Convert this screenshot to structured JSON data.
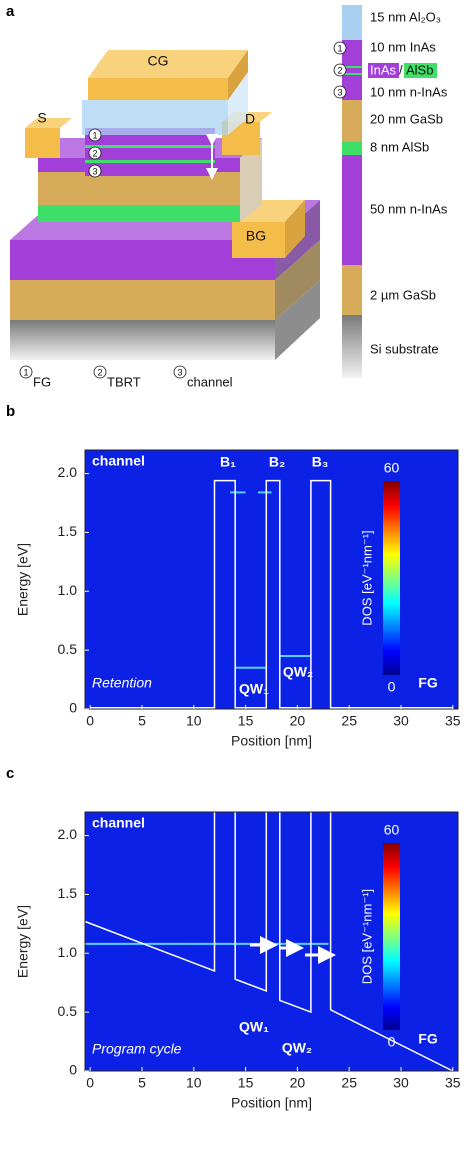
{
  "panel_a": {
    "label": "a",
    "device_labels": [
      "CG",
      "S",
      "D",
      "BG"
    ],
    "stack_markers": [
      "1",
      "2",
      "3"
    ],
    "layers": [
      "15 nm Al₂O₃",
      "10 nm InAs",
      "10 nm n-InAs",
      "20 nm GaSb",
      "8 nm AlSb",
      "50 nm n-InAs",
      "2 µm GaSb",
      "Si substrate"
    ],
    "barrier_label": {
      "well": "InAs",
      "separator": "/",
      "barrier": "AlSb"
    },
    "legend": [
      {
        "marker": "1",
        "text": "FG"
      },
      {
        "marker": "2",
        "text": "TBRT"
      },
      {
        "marker": "3",
        "text": "channel"
      }
    ]
  },
  "chart_data": [
    {
      "type": "line",
      "label": "b",
      "xlabel": "Position [nm]",
      "ylabel": "Energy [eV]",
      "xlim": [
        -0.5,
        35.5
      ],
      "ylim": [
        0,
        2.2
      ],
      "xticks": [
        0,
        5,
        10,
        15,
        20,
        25,
        30,
        35
      ],
      "yticks": [
        0,
        0.5,
        {
          "value": 1,
          "label": "1.0"
        },
        1.5,
        {
          "value": 2,
          "label": "2.0"
        }
      ],
      "band_edge": {
        "color": "#ffffff",
        "x": [
          0,
          12,
          12,
          14,
          14,
          17,
          17,
          18.3,
          18.3,
          21.3,
          21.3,
          23.2,
          23.2,
          35
        ],
        "y": [
          0.01,
          0.01,
          1.94,
          1.94,
          0.01,
          0.01,
          1.94,
          1.94,
          0.01,
          0.01,
          1.94,
          1.94,
          0.01,
          0.01
        ]
      },
      "levels": [
        {
          "x": [
            14,
            17
          ],
          "y": [
            0.35,
            0.35
          ]
        },
        {
          "x": [
            18.3,
            21.3
          ],
          "y": [
            0.45,
            0.45
          ]
        },
        {
          "x": [
            13.5,
            15
          ],
          "y": [
            1.84,
            1.84
          ]
        },
        {
          "x": [
            16.2,
            17.5
          ],
          "y": [
            1.84,
            1.84
          ]
        }
      ],
      "annotations": [
        "channel",
        "B₁",
        "B₂",
        "B₃",
        "QW₁",
        "QW₂",
        "Retention",
        "FG"
      ],
      "colorbar": {
        "label": "DOS [eV⁻¹nm⁻¹]",
        "lim": [
          0,
          60
        ],
        "ticks": [
          0,
          60
        ]
      }
    },
    {
      "type": "line",
      "label": "c",
      "xlabel": "Position [nm]",
      "ylabel": "Energy [eV]",
      "xlim": [
        -0.5,
        35.5
      ],
      "ylim": [
        0,
        2.2
      ],
      "xticks": [
        0,
        5,
        10,
        15,
        20,
        25,
        30,
        35
      ],
      "yticks": [
        0,
        0.5,
        {
          "value": 1,
          "label": "1.0"
        },
        1.5,
        {
          "value": 2,
          "label": "2.0"
        }
      ],
      "band_edge": {
        "color": "#ffffff",
        "x": [
          -0.5,
          12,
          12,
          null,
          14,
          14,
          17,
          17,
          null,
          18.3,
          18.3,
          21.3,
          21.3,
          null,
          23.2,
          23.2,
          35
        ],
        "y": [
          1.27,
          0.85,
          2.2,
          null,
          2.2,
          0.78,
          0.68,
          2.2,
          null,
          2.2,
          0.6,
          0.5,
          2.2,
          null,
          2.2,
          0.52,
          0
        ]
      },
      "levels": [
        {
          "x": [
            -0.5,
            23
          ],
          "y": [
            1.08,
            1.08
          ]
        }
      ],
      "annotations": [
        "channel",
        "QW₁",
        "QW₂",
        "Program cycle",
        "FG"
      ],
      "colorbar": {
        "label": "DOS [eV⁻¹nm⁻¹]",
        "lim": [
          0,
          60
        ],
        "ticks": [
          0,
          60
        ]
      }
    }
  ]
}
